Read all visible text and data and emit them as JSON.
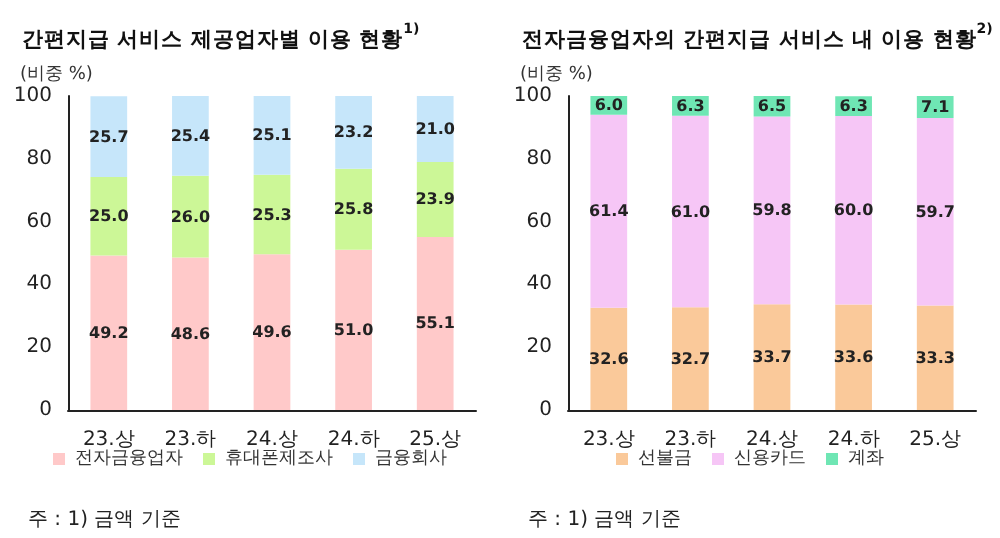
{
  "chart_data": [
    {
      "type": "bar",
      "title": "간편지급 서비스 제공업자별 이용 현황$^{1)}$",
      "ylabel": "(비중 %)",
      "categories": [
        "23.상",
        "23.하",
        "24.상",
        "24.하",
        "25.상"
      ],
      "stacked": true,
      "ylim": [
        0,
        100
      ],
      "yticks": [
        0,
        20,
        40,
        60,
        80,
        100
      ],
      "grid": false,
      "legend": "bottom",
      "series": [
        {
          "name": "전자금융업자",
          "color": "#ffc9c9",
          "values": [
            49.2,
            48.6,
            49.6,
            51.0,
            55.1
          ],
          "value_labels": [
            "49.2",
            "48.6",
            "49.6",
            "51.0",
            "55.1"
          ]
        },
        {
          "name": "휴대폰제조사",
          "color": "#ccf797",
          "values": [
            25.0,
            26.0,
            25.3,
            25.8,
            23.9
          ],
          "value_labels": [
            "25.0",
            "26.0",
            "25.3",
            "25.8",
            "23.9"
          ]
        },
        {
          "name": "금융회사",
          "color": "#c6e6fa",
          "values": [
            25.7,
            25.4,
            25.1,
            23.2,
            21.0
          ],
          "value_labels": [
            "25.7",
            "25.4",
            "25.1",
            "23.2",
            "21.0"
          ]
        }
      ],
      "annotations": [
        "주 : 1) 금액 기준"
      ]
    },
    {
      "type": "bar",
      "title": "전자금융업자의 간편지급 서비스 내 이용 현황$^{2)}$",
      "ylabel": "(비중 %)",
      "categories": [
        "23.상",
        "23.하",
        "24.상",
        "24.하",
        "25.상"
      ],
      "stacked": true,
      "ylim": [
        0,
        100
      ],
      "yticks": [
        0,
        20,
        40,
        60,
        80,
        100
      ],
      "grid": false,
      "legend": "bottom",
      "series": [
        {
          "name": "선불금",
          "color": "#fac99a",
          "values": [
            32.6,
            32.7,
            33.7,
            33.6,
            33.3
          ],
          "value_labels": [
            "32.6",
            "32.7",
            "33.7",
            "33.6",
            "33.3"
          ]
        },
        {
          "name": "신용카드",
          "color": "#f6c6f6",
          "values": [
            61.4,
            61.0,
            59.8,
            60.0,
            59.7
          ],
          "value_labels": [
            "61.4",
            "61.0",
            "59.8",
            "60.0",
            "59.7"
          ]
        },
        {
          "name": "계좌",
          "color": "#6fe6b4",
          "values": [
            6.0,
            6.3,
            6.5,
            6.3,
            7.1
          ],
          "value_labels": [
            "6.0",
            "6.3",
            "6.5",
            "6.3",
            "7.1"
          ]
        }
      ],
      "annotations": [
        "주 : 1) 금액 기준"
      ]
    }
  ]
}
